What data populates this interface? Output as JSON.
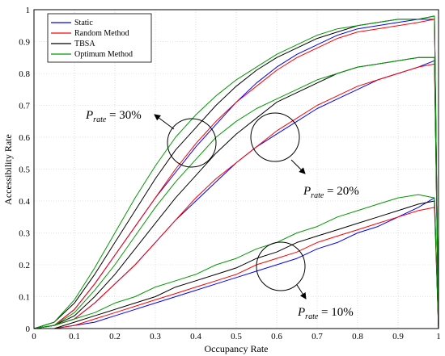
{
  "chart_data": {
    "type": "line",
    "xlabel": "Occupancy Rate",
    "ylabel": "Accessibility Rate",
    "xlim": [
      0,
      1
    ],
    "ylim": [
      0,
      1
    ],
    "xticks": [
      "0",
      "0.1",
      "0.2",
      "0.3",
      "0.4",
      "0.5",
      "0.6",
      "0.7",
      "0.8",
      "0.9",
      "1"
    ],
    "yticks": [
      "0",
      "0.1",
      "0.2",
      "0.3",
      "0.4",
      "0.5",
      "0.6",
      "0.7",
      "0.8",
      "0.9",
      "1"
    ],
    "grid": true,
    "legend_position": "top-left",
    "series_styles": [
      {
        "name": "Static",
        "color": "#0000ff"
      },
      {
        "name": "Random Method",
        "color": "#ff0000"
      },
      {
        "name": "TBSA",
        "color": "#000000"
      },
      {
        "name": "Optimum Method",
        "color": "#009900"
      }
    ],
    "x": [
      0,
      0.05,
      0.1,
      0.15,
      0.2,
      0.25,
      0.3,
      0.35,
      0.4,
      0.45,
      0.5,
      0.55,
      0.6,
      0.65,
      0.7,
      0.75,
      0.8,
      0.85,
      0.9,
      0.95,
      0.99
    ],
    "groups": [
      {
        "label_main": "P",
        "label_sub": "rate",
        "label_value": " = 30%",
        "series": [
          {
            "name": "Static",
            "values": [
              0,
              0.01,
              0.06,
              0.14,
              0.23,
              0.32,
              0.41,
              0.49,
              0.57,
              0.64,
              0.71,
              0.77,
              0.82,
              0.86,
              0.89,
              0.92,
              0.94,
              0.95,
              0.96,
              0.97,
              0.97
            ]
          },
          {
            "name": "Random Method",
            "values": [
              0,
              0.01,
              0.06,
              0.14,
              0.23,
              0.32,
              0.41,
              0.5,
              0.58,
              0.65,
              0.71,
              0.76,
              0.81,
              0.85,
              0.88,
              0.91,
              0.93,
              0.94,
              0.95,
              0.96,
              0.97
            ]
          },
          {
            "name": "TBSA",
            "values": [
              0,
              0.02,
              0.08,
              0.17,
              0.27,
              0.37,
              0.47,
              0.56,
              0.63,
              0.7,
              0.76,
              0.81,
              0.85,
              0.88,
              0.91,
              0.93,
              0.95,
              0.96,
              0.97,
              0.97,
              0.98
            ]
          },
          {
            "name": "Optimum Method",
            "values": [
              0,
              0.02,
              0.09,
              0.19,
              0.3,
              0.41,
              0.51,
              0.6,
              0.67,
              0.73,
              0.78,
              0.82,
              0.86,
              0.89,
              0.92,
              0.94,
              0.95,
              0.96,
              0.97,
              0.97,
              0.98
            ]
          }
        ]
      },
      {
        "label_main": "P",
        "label_sub": "rate",
        "label_value": " = 20%",
        "series": [
          {
            "name": "Static",
            "values": [
              0,
              0.01,
              0.03,
              0.08,
              0.14,
              0.2,
              0.27,
              0.34,
              0.4,
              0.46,
              0.52,
              0.57,
              0.61,
              0.65,
              0.69,
              0.72,
              0.75,
              0.78,
              0.8,
              0.82,
              0.84
            ]
          },
          {
            "name": "Random Method",
            "values": [
              0,
              0.01,
              0.03,
              0.08,
              0.14,
              0.2,
              0.27,
              0.34,
              0.41,
              0.47,
              0.52,
              0.57,
              0.62,
              0.66,
              0.7,
              0.73,
              0.76,
              0.78,
              0.8,
              0.82,
              0.83
            ]
          },
          {
            "name": "TBSA",
            "values": [
              0,
              0.01,
              0.04,
              0.1,
              0.17,
              0.25,
              0.33,
              0.41,
              0.48,
              0.55,
              0.61,
              0.66,
              0.71,
              0.74,
              0.77,
              0.8,
              0.82,
              0.83,
              0.84,
              0.85,
              0.85
            ]
          },
          {
            "name": "Optimum Method",
            "values": [
              0,
              0.01,
              0.05,
              0.12,
              0.2,
              0.29,
              0.38,
              0.46,
              0.53,
              0.6,
              0.65,
              0.69,
              0.72,
              0.75,
              0.78,
              0.8,
              0.82,
              0.83,
              0.84,
              0.85,
              0.85
            ]
          }
        ]
      },
      {
        "label_main": "P",
        "label_sub": "rate",
        "label_value": " = 10%",
        "series": [
          {
            "name": "Static",
            "values": [
              0,
              0,
              0.01,
              0.02,
              0.04,
              0.06,
              0.08,
              0.1,
              0.12,
              0.14,
              0.16,
              0.18,
              0.2,
              0.22,
              0.25,
              0.27,
              0.3,
              0.32,
              0.35,
              0.38,
              0.41
            ]
          },
          {
            "name": "Random Method",
            "values": [
              0,
              0,
              0.01,
              0.03,
              0.05,
              0.07,
              0.09,
              0.11,
              0.13,
              0.15,
              0.17,
              0.2,
              0.22,
              0.24,
              0.27,
              0.29,
              0.31,
              0.33,
              0.35,
              0.37,
              0.38
            ]
          },
          {
            "name": "TBSA",
            "values": [
              0,
              0,
              0.02,
              0.04,
              0.06,
              0.08,
              0.1,
              0.13,
              0.15,
              0.17,
              0.19,
              0.22,
              0.24,
              0.27,
              0.29,
              0.31,
              0.33,
              0.35,
              0.37,
              0.39,
              0.4
            ]
          },
          {
            "name": "Optimum Method",
            "values": [
              0,
              0.01,
              0.03,
              0.05,
              0.08,
              0.1,
              0.13,
              0.15,
              0.17,
              0.2,
              0.22,
              0.25,
              0.27,
              0.3,
              0.32,
              0.35,
              0.37,
              0.39,
              0.41,
              0.42,
              0.41
            ]
          }
        ]
      }
    ]
  }
}
